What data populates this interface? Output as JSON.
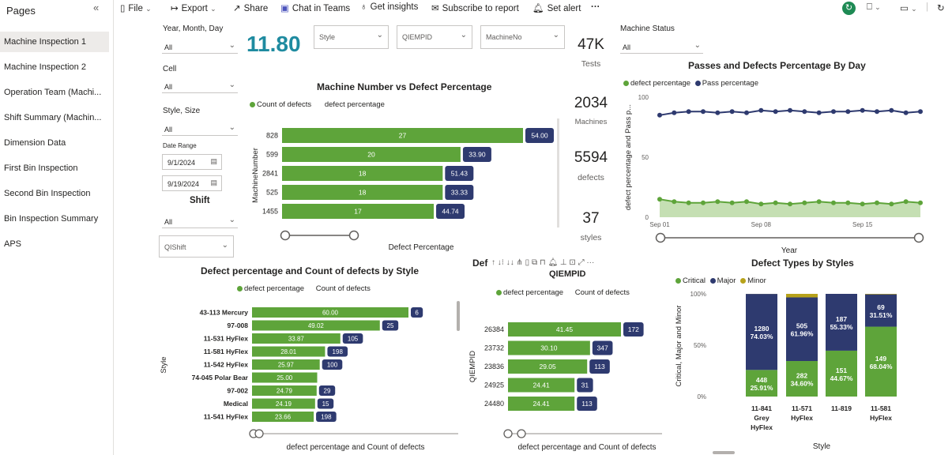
{
  "sidebar": {
    "title": "Pages",
    "items": [
      {
        "label": "Machine Inspection 1",
        "active": true
      },
      {
        "label": "Machine Inspection 2"
      },
      {
        "label": "Operation Team (Machi..."
      },
      {
        "label": "Shift Summary (Machin..."
      },
      {
        "label": "Dimension Data"
      },
      {
        "label": "First Bin Inspection"
      },
      {
        "label": "Second Bin Inspection"
      },
      {
        "label": "Bin Inspection Summary"
      },
      {
        "label": "APS"
      }
    ]
  },
  "toolbar": {
    "file": "File",
    "export": "Export",
    "share": "Share",
    "chat": "Chat in Teams",
    "insights": "Get insights",
    "subscribe": "Subscribe to report",
    "alert": "Set alert",
    "more": "···"
  },
  "slicers": {
    "ymd": {
      "label": "Year, Month, Day",
      "value": "All"
    },
    "cell": {
      "label": "Cell",
      "value": "All"
    },
    "style_size": {
      "label": "Style, Size",
      "value": "All"
    },
    "date_range": {
      "label": "Date Range",
      "start": "9/1/2024",
      "end": "9/19/2024"
    },
    "shift": {
      "label": "Shift",
      "value": "All"
    },
    "qishift": {
      "placeholder": "QIShift"
    },
    "style": {
      "placeholder": "Style"
    },
    "qiempid": {
      "placeholder": "QIEMPID"
    },
    "machine_no": {
      "placeholder": "MachineNo"
    },
    "machine_status": {
      "label": "Machine Status",
      "value": "All"
    }
  },
  "kpis": {
    "defect_pct": "11.80",
    "tests": {
      "value": "47K",
      "label": "Tests"
    },
    "machines": {
      "value": "2034",
      "label": "Machines"
    },
    "defects": {
      "value": "5594",
      "label": "defects"
    },
    "styles": {
      "value": "37",
      "label": "styles"
    }
  },
  "colors": {
    "green": "#5ea43a",
    "navy": "#2e3a6f",
    "gold": "#b7a21a",
    "accent": "#1f8ba0"
  },
  "charts": {
    "machine": {
      "title": "Machine Number vs Defect Percentage",
      "legend": [
        "Count of defects",
        "defect percentage"
      ],
      "ylabel": "MachineNumber",
      "xlabel": "Defect Percentage"
    },
    "passes": {
      "title": "Passes and Defects Percentage By Day",
      "legend": [
        "defect percentage",
        "Pass percentage"
      ],
      "ylabel": "defect percentage and Pass p...",
      "xlabel": "Year"
    },
    "style_chart": {
      "title": "Defect percentage and Count of defects by Style",
      "legend": [
        "defect percentage",
        "Count of defects"
      ],
      "ylabel": "Style",
      "xlabel": "defect percentage and Count of defects"
    },
    "qiempid": {
      "title": "Def",
      "subtitle": "QIEMPID",
      "legend": [
        "defect percentage",
        "Count of defects"
      ],
      "ylabel": "QIEMPID",
      "xlabel": "defect percentage and Count of defects"
    },
    "types": {
      "title": "Defect Types by Styles",
      "legend": [
        "Critical",
        "Major",
        "Minor"
      ],
      "ylabel": "Critical, Major and Minor",
      "xlabel": "Style"
    }
  },
  "chart_data": [
    {
      "type": "bar",
      "id": "machine",
      "categories": [
        "828",
        "599",
        "2841",
        "525",
        "1455"
      ],
      "series": [
        {
          "name": "defect percentage",
          "values": [
            27,
            20,
            18,
            18,
            17
          ]
        },
        {
          "name": "Count of defects",
          "values": [
            54.0,
            33.9,
            51.43,
            33.33,
            44.74
          ]
        }
      ]
    },
    {
      "type": "line",
      "id": "passes",
      "x": [
        "Sep 01",
        "Sep 02",
        "Sep 03",
        "Sep 04",
        "Sep 05",
        "Sep 06",
        "Sep 07",
        "Sep 08",
        "Sep 09",
        "Sep 10",
        "Sep 11",
        "Sep 12",
        "Sep 13",
        "Sep 14",
        "Sep 15",
        "Sep 16",
        "Sep 17",
        "Sep 18",
        "Sep 19"
      ],
      "xticks": [
        "Sep 01",
        "Sep 08",
        "Sep 15"
      ],
      "yticks": [
        "0",
        "50",
        "100"
      ],
      "ylim": [
        0,
        100
      ],
      "series": [
        {
          "name": "Pass percentage",
          "values": [
            85,
            87,
            88,
            88,
            87,
            88,
            87,
            89,
            88,
            89,
            88,
            87,
            88,
            88,
            89,
            88,
            89,
            87,
            88
          ]
        },
        {
          "name": "defect percentage",
          "values": [
            15,
            13,
            12,
            12,
            13,
            12,
            13,
            11,
            12,
            11,
            12,
            13,
            12,
            12,
            11,
            12,
            11,
            13,
            12
          ]
        }
      ]
    },
    {
      "type": "bar",
      "id": "style_chart",
      "categories": [
        "43-113 Mercury",
        "97-008",
        "11-531 HyFlex",
        "11-581 HyFlex",
        "11-542 HyFlex",
        "74-045 Polar Bear",
        "97-002",
        "Medical",
        "11-541 HyFlex"
      ],
      "series": [
        {
          "name": "defect percentage",
          "values": [
            60.0,
            49.02,
            33.87,
            28.01,
            25.97,
            25.0,
            24.79,
            24.19,
            23.66
          ]
        },
        {
          "name": "Count of defects",
          "values": [
            "6",
            "25",
            "105",
            "198",
            "100",
            "",
            "29",
            "15",
            "198"
          ]
        }
      ]
    },
    {
      "type": "bar",
      "id": "qiempid",
      "categories": [
        "26384",
        "23732",
        "23836",
        "24925",
        "24480"
      ],
      "series": [
        {
          "name": "defect percentage",
          "values": [
            41.45,
            30.1,
            29.05,
            24.41,
            24.41
          ]
        },
        {
          "name": "Count of defects",
          "values": [
            "172",
            "347",
            "113",
            "31",
            "113"
          ]
        }
      ]
    },
    {
      "type": "bar",
      "id": "types",
      "stacked": true,
      "categories": [
        "11-841 Grey HyFlex",
        "11-571 HyFlex",
        "11-819",
        "11-581 HyFlex"
      ],
      "yticks": [
        "0%",
        "50%",
        "100%"
      ],
      "series": [
        {
          "name": "Critical",
          "values": [
            25.91,
            34.6,
            44.67,
            68.04
          ],
          "labels": [
            [
              "448",
              "25.91%"
            ],
            [
              "282",
              "34.60%"
            ],
            [
              "151",
              "44.67%"
            ],
            [
              "149",
              "68.04%"
            ]
          ]
        },
        {
          "name": "Major",
          "values": [
            74.03,
            61.96,
            55.33,
            31.51
          ],
          "labels": [
            [
              "1280",
              "74.03%"
            ],
            [
              "505",
              "61.96%"
            ],
            [
              "187",
              "55.33%"
            ],
            [
              "69",
              "31.51%"
            ]
          ]
        },
        {
          "name": "Minor",
          "values": [
            0.06,
            3.44,
            0,
            0.45
          ]
        }
      ]
    }
  ]
}
